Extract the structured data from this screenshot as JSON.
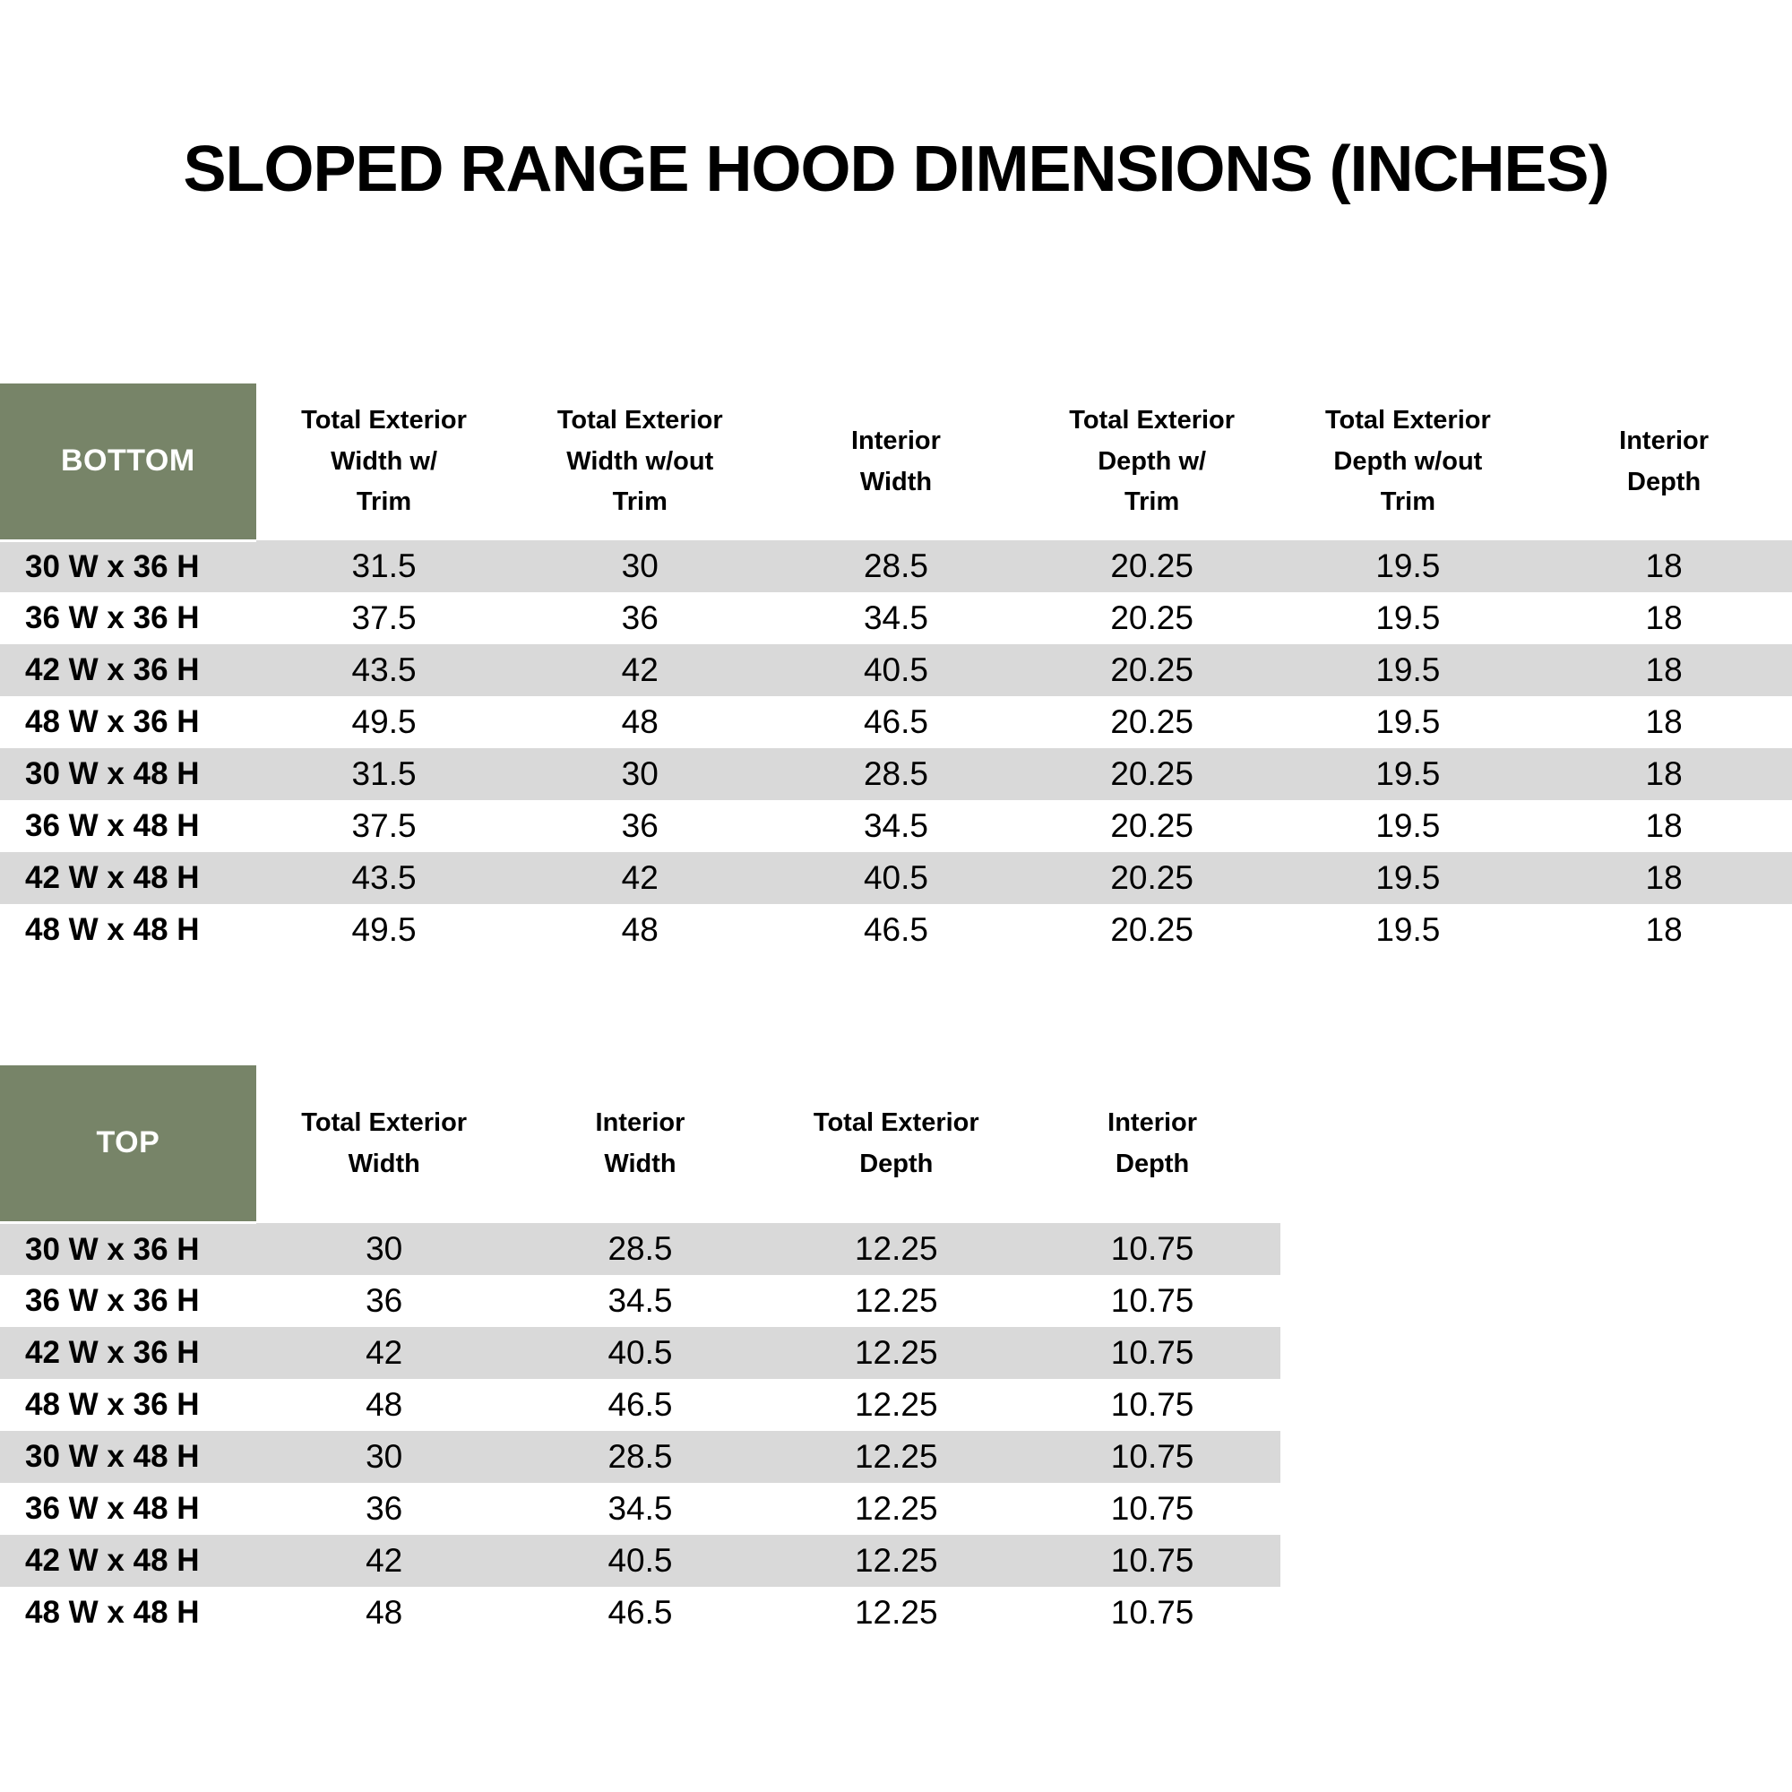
{
  "page": {
    "title": "SLOPED RANGE HOOD DIMENSIONS (INCHES)"
  },
  "colors": {
    "header_green": "#778468",
    "stripe_gray": "#d9d9d9",
    "row_white": "#ffffff",
    "corner_text": "#ffffff",
    "body_text": "#000000"
  },
  "tables": [
    {
      "id": "bottom",
      "corner_label": "BOTTOM",
      "columns": [
        "Total Exterior\nWidth w/\nTrim",
        "Total Exterior\nWidth w/out\nTrim",
        "Interior\nWidth",
        "Total Exterior\nDepth w/\nTrim",
        "Total Exterior\nDepth w/out\nTrim",
        "Interior\nDepth"
      ],
      "rows": [
        {
          "label": "30 W x 36 H",
          "values": [
            "31.5",
            "30",
            "28.5",
            "20.25",
            "19.5",
            "18"
          ]
        },
        {
          "label": "36 W x 36 H",
          "values": [
            "37.5",
            "36",
            "34.5",
            "20.25",
            "19.5",
            "18"
          ]
        },
        {
          "label": "42 W x 36 H",
          "values": [
            "43.5",
            "42",
            "40.5",
            "20.25",
            "19.5",
            "18"
          ]
        },
        {
          "label": "48 W x 36 H",
          "values": [
            "49.5",
            "48",
            "46.5",
            "20.25",
            "19.5",
            "18"
          ]
        },
        {
          "label": "30 W x 48 H",
          "values": [
            "31.5",
            "30",
            "28.5",
            "20.25",
            "19.5",
            "18"
          ]
        },
        {
          "label": "36 W x 48 H",
          "values": [
            "37.5",
            "36",
            "34.5",
            "20.25",
            "19.5",
            "18"
          ]
        },
        {
          "label": "42 W x 48 H",
          "values": [
            "43.5",
            "42",
            "40.5",
            "20.25",
            "19.5",
            "18"
          ]
        },
        {
          "label": "48 W x 48 H",
          "values": [
            "49.5",
            "48",
            "46.5",
            "20.25",
            "19.5",
            "18"
          ]
        }
      ]
    },
    {
      "id": "top",
      "corner_label": "TOP",
      "columns": [
        "Total Exterior\nWidth",
        "Interior\nWidth",
        "Total Exterior\nDepth",
        "Interior\nDepth"
      ],
      "rows": [
        {
          "label": "30 W x 36 H",
          "values": [
            "30",
            "28.5",
            "12.25",
            "10.75"
          ]
        },
        {
          "label": "36 W x 36 H",
          "values": [
            "36",
            "34.5",
            "12.25",
            "10.75"
          ]
        },
        {
          "label": "42 W x 36 H",
          "values": [
            "42",
            "40.5",
            "12.25",
            "10.75"
          ]
        },
        {
          "label": "48 W x 36 H",
          "values": [
            "48",
            "46.5",
            "12.25",
            "10.75"
          ]
        },
        {
          "label": "30 W x 48 H",
          "values": [
            "30",
            "28.5",
            "12.25",
            "10.75"
          ]
        },
        {
          "label": "36 W x 48 H",
          "values": [
            "36",
            "34.5",
            "12.25",
            "10.75"
          ]
        },
        {
          "label": "42 W x 48 H",
          "values": [
            "42",
            "40.5",
            "12.25",
            "10.75"
          ]
        },
        {
          "label": "48 W x 48 H",
          "values": [
            "48",
            "46.5",
            "12.25",
            "10.75"
          ]
        }
      ]
    }
  ]
}
